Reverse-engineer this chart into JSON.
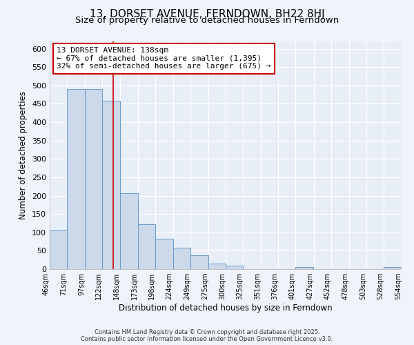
{
  "title": "13, DORSET AVENUE, FERNDOWN, BH22 8HJ",
  "subtitle": "Size of property relative to detached houses in Ferndown",
  "xlabel": "Distribution of detached houses by size in Ferndown",
  "ylabel": "Number of detached properties",
  "bar_edges": [
    46,
    71,
    97,
    122,
    148,
    173,
    198,
    224,
    249,
    275,
    300,
    325,
    351,
    376,
    401,
    427,
    452,
    478,
    503,
    528,
    554
  ],
  "bar_heights": [
    105,
    490,
    490,
    458,
    207,
    122,
    83,
    58,
    37,
    15,
    10,
    0,
    0,
    0,
    5,
    0,
    0,
    0,
    0,
    5
  ],
  "bar_color": "#ccd9ea",
  "bar_edge_color": "#6699cc",
  "vline_x": 138,
  "vline_color": "#cc0000",
  "annotation_line1": "13 DORSET AVENUE: 138sqm",
  "annotation_line2": "← 67% of detached houses are smaller (1,395)",
  "annotation_line3": "32% of semi-detached houses are larger (675) →",
  "background_color": "#f0f4fa",
  "plot_bg_color": "#e8eef8",
  "grid_color": "#ffffff",
  "footer_line1": "Contains HM Land Registry data © Crown copyright and database right 2025.",
  "footer_line2": "Contains public sector information licensed under the Open Government Licence v3.0.",
  "ylim": [
    0,
    620
  ],
  "yticks": [
    0,
    50,
    100,
    150,
    200,
    250,
    300,
    350,
    400,
    450,
    500,
    550,
    600
  ],
  "tick_labels": [
    "46sqm",
    "71sqm",
    "97sqm",
    "122sqm",
    "148sqm",
    "173sqm",
    "198sqm",
    "224sqm",
    "249sqm",
    "275sqm",
    "300sqm",
    "325sqm",
    "351sqm",
    "376sqm",
    "401sqm",
    "427sqm",
    "452sqm",
    "478sqm",
    "503sqm",
    "528sqm",
    "554sqm"
  ],
  "title_fontsize": 11,
  "subtitle_fontsize": 9.5,
  "axis_label_fontsize": 8.5,
  "tick_fontsize": 7,
  "annotation_fontsize": 8,
  "footer_fontsize": 6
}
